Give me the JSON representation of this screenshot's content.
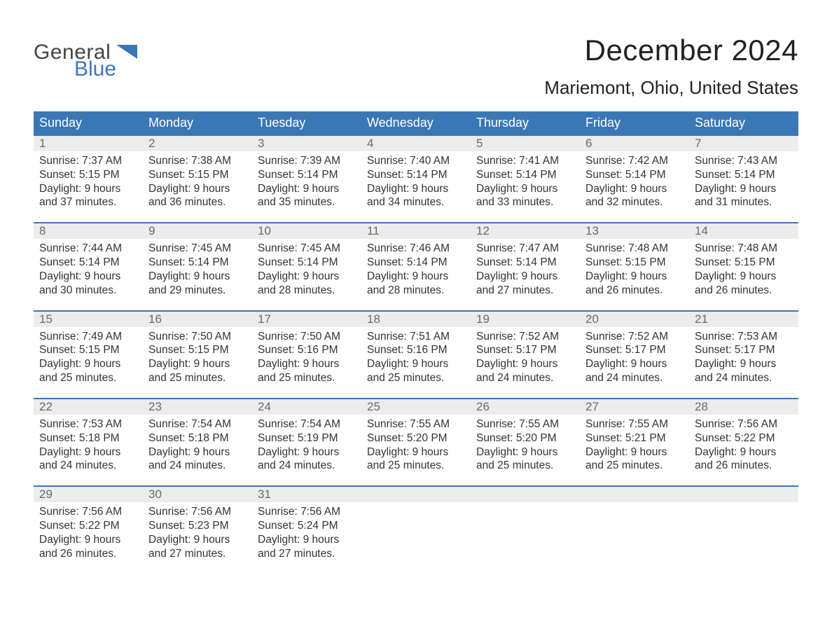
{
  "logo": {
    "top": "General",
    "bottom": "Blue",
    "accent_color": "#3a77b7"
  },
  "title": "December 2024",
  "location": "Mariemont, Ohio, United States",
  "colors": {
    "header_bg": "#3a77b7",
    "header_text": "#ffffff",
    "date_row_bg": "#ececec",
    "date_text": "#6a6a6a",
    "body_text": "#333333",
    "week_border": "#3a77b7",
    "page_bg": "#ffffff"
  },
  "typography": {
    "title_fontsize": 42,
    "location_fontsize": 26,
    "header_fontsize": 18,
    "date_fontsize": 17,
    "cell_fontsize": 15.5,
    "font_family": "Arial"
  },
  "day_names": [
    "Sunday",
    "Monday",
    "Tuesday",
    "Wednesday",
    "Thursday",
    "Friday",
    "Saturday"
  ],
  "weeks": [
    [
      {
        "date": "1",
        "sunrise": "Sunrise: 7:37 AM",
        "sunset": "Sunset: 5:15 PM",
        "dl1": "Daylight: 9 hours",
        "dl2": "and 37 minutes."
      },
      {
        "date": "2",
        "sunrise": "Sunrise: 7:38 AM",
        "sunset": "Sunset: 5:15 PM",
        "dl1": "Daylight: 9 hours",
        "dl2": "and 36 minutes."
      },
      {
        "date": "3",
        "sunrise": "Sunrise: 7:39 AM",
        "sunset": "Sunset: 5:14 PM",
        "dl1": "Daylight: 9 hours",
        "dl2": "and 35 minutes."
      },
      {
        "date": "4",
        "sunrise": "Sunrise: 7:40 AM",
        "sunset": "Sunset: 5:14 PM",
        "dl1": "Daylight: 9 hours",
        "dl2": "and 34 minutes."
      },
      {
        "date": "5",
        "sunrise": "Sunrise: 7:41 AM",
        "sunset": "Sunset: 5:14 PM",
        "dl1": "Daylight: 9 hours",
        "dl2": "and 33 minutes."
      },
      {
        "date": "6",
        "sunrise": "Sunrise: 7:42 AM",
        "sunset": "Sunset: 5:14 PM",
        "dl1": "Daylight: 9 hours",
        "dl2": "and 32 minutes."
      },
      {
        "date": "7",
        "sunrise": "Sunrise: 7:43 AM",
        "sunset": "Sunset: 5:14 PM",
        "dl1": "Daylight: 9 hours",
        "dl2": "and 31 minutes."
      }
    ],
    [
      {
        "date": "8",
        "sunrise": "Sunrise: 7:44 AM",
        "sunset": "Sunset: 5:14 PM",
        "dl1": "Daylight: 9 hours",
        "dl2": "and 30 minutes."
      },
      {
        "date": "9",
        "sunrise": "Sunrise: 7:45 AM",
        "sunset": "Sunset: 5:14 PM",
        "dl1": "Daylight: 9 hours",
        "dl2": "and 29 minutes."
      },
      {
        "date": "10",
        "sunrise": "Sunrise: 7:45 AM",
        "sunset": "Sunset: 5:14 PM",
        "dl1": "Daylight: 9 hours",
        "dl2": "and 28 minutes."
      },
      {
        "date": "11",
        "sunrise": "Sunrise: 7:46 AM",
        "sunset": "Sunset: 5:14 PM",
        "dl1": "Daylight: 9 hours",
        "dl2": "and 28 minutes."
      },
      {
        "date": "12",
        "sunrise": "Sunrise: 7:47 AM",
        "sunset": "Sunset: 5:14 PM",
        "dl1": "Daylight: 9 hours",
        "dl2": "and 27 minutes."
      },
      {
        "date": "13",
        "sunrise": "Sunrise: 7:48 AM",
        "sunset": "Sunset: 5:15 PM",
        "dl1": "Daylight: 9 hours",
        "dl2": "and 26 minutes."
      },
      {
        "date": "14",
        "sunrise": "Sunrise: 7:48 AM",
        "sunset": "Sunset: 5:15 PM",
        "dl1": "Daylight: 9 hours",
        "dl2": "and 26 minutes."
      }
    ],
    [
      {
        "date": "15",
        "sunrise": "Sunrise: 7:49 AM",
        "sunset": "Sunset: 5:15 PM",
        "dl1": "Daylight: 9 hours",
        "dl2": "and 25 minutes."
      },
      {
        "date": "16",
        "sunrise": "Sunrise: 7:50 AM",
        "sunset": "Sunset: 5:15 PM",
        "dl1": "Daylight: 9 hours",
        "dl2": "and 25 minutes."
      },
      {
        "date": "17",
        "sunrise": "Sunrise: 7:50 AM",
        "sunset": "Sunset: 5:16 PM",
        "dl1": "Daylight: 9 hours",
        "dl2": "and 25 minutes."
      },
      {
        "date": "18",
        "sunrise": "Sunrise: 7:51 AM",
        "sunset": "Sunset: 5:16 PM",
        "dl1": "Daylight: 9 hours",
        "dl2": "and 25 minutes."
      },
      {
        "date": "19",
        "sunrise": "Sunrise: 7:52 AM",
        "sunset": "Sunset: 5:17 PM",
        "dl1": "Daylight: 9 hours",
        "dl2": "and 24 minutes."
      },
      {
        "date": "20",
        "sunrise": "Sunrise: 7:52 AM",
        "sunset": "Sunset: 5:17 PM",
        "dl1": "Daylight: 9 hours",
        "dl2": "and 24 minutes."
      },
      {
        "date": "21",
        "sunrise": "Sunrise: 7:53 AM",
        "sunset": "Sunset: 5:17 PM",
        "dl1": "Daylight: 9 hours",
        "dl2": "and 24 minutes."
      }
    ],
    [
      {
        "date": "22",
        "sunrise": "Sunrise: 7:53 AM",
        "sunset": "Sunset: 5:18 PM",
        "dl1": "Daylight: 9 hours",
        "dl2": "and 24 minutes."
      },
      {
        "date": "23",
        "sunrise": "Sunrise: 7:54 AM",
        "sunset": "Sunset: 5:18 PM",
        "dl1": "Daylight: 9 hours",
        "dl2": "and 24 minutes."
      },
      {
        "date": "24",
        "sunrise": "Sunrise: 7:54 AM",
        "sunset": "Sunset: 5:19 PM",
        "dl1": "Daylight: 9 hours",
        "dl2": "and 24 minutes."
      },
      {
        "date": "25",
        "sunrise": "Sunrise: 7:55 AM",
        "sunset": "Sunset: 5:20 PM",
        "dl1": "Daylight: 9 hours",
        "dl2": "and 25 minutes."
      },
      {
        "date": "26",
        "sunrise": "Sunrise: 7:55 AM",
        "sunset": "Sunset: 5:20 PM",
        "dl1": "Daylight: 9 hours",
        "dl2": "and 25 minutes."
      },
      {
        "date": "27",
        "sunrise": "Sunrise: 7:55 AM",
        "sunset": "Sunset: 5:21 PM",
        "dl1": "Daylight: 9 hours",
        "dl2": "and 25 minutes."
      },
      {
        "date": "28",
        "sunrise": "Sunrise: 7:56 AM",
        "sunset": "Sunset: 5:22 PM",
        "dl1": "Daylight: 9 hours",
        "dl2": "and 26 minutes."
      }
    ],
    [
      {
        "date": "29",
        "sunrise": "Sunrise: 7:56 AM",
        "sunset": "Sunset: 5:22 PM",
        "dl1": "Daylight: 9 hours",
        "dl2": "and 26 minutes."
      },
      {
        "date": "30",
        "sunrise": "Sunrise: 7:56 AM",
        "sunset": "Sunset: 5:23 PM",
        "dl1": "Daylight: 9 hours",
        "dl2": "and 27 minutes."
      },
      {
        "date": "31",
        "sunrise": "Sunrise: 7:56 AM",
        "sunset": "Sunset: 5:24 PM",
        "dl1": "Daylight: 9 hours",
        "dl2": "and 27 minutes."
      },
      {
        "date": "",
        "sunrise": "",
        "sunset": "",
        "dl1": "",
        "dl2": ""
      },
      {
        "date": "",
        "sunrise": "",
        "sunset": "",
        "dl1": "",
        "dl2": ""
      },
      {
        "date": "",
        "sunrise": "",
        "sunset": "",
        "dl1": "",
        "dl2": ""
      },
      {
        "date": "",
        "sunrise": "",
        "sunset": "",
        "dl1": "",
        "dl2": ""
      }
    ]
  ]
}
